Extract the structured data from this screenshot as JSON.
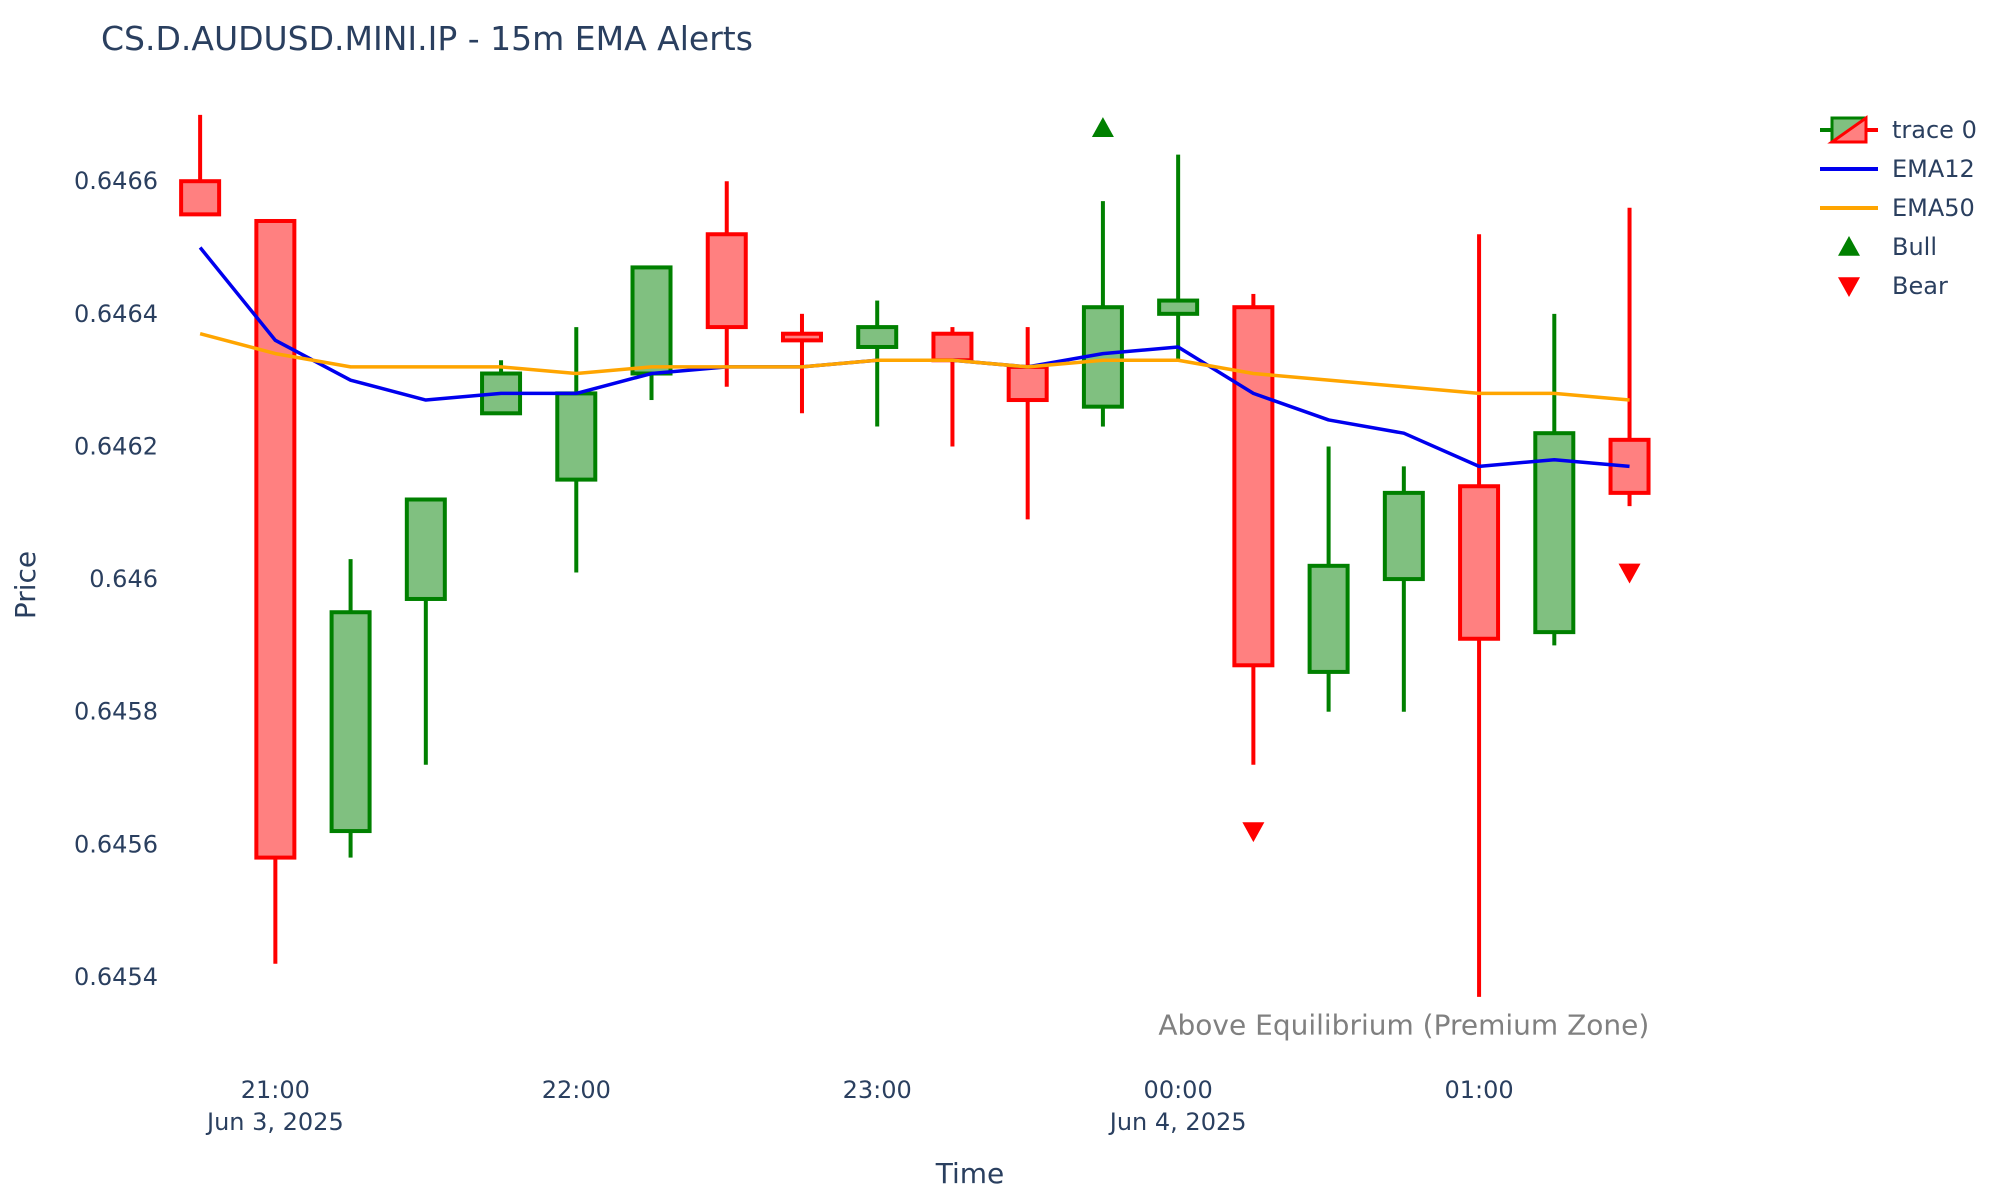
{
  "chart_data": {
    "type": "candlestick",
    "title": "CS.D.AUDUSD.MINI.IP - 15m EMA Alerts",
    "xlabel": "Time",
    "ylabel": "Price",
    "ylim": [
      0.64532,
      0.64673
    ],
    "x_range": [
      "2025-06-03 20:37",
      "2025-06-04 02:00"
    ],
    "grid": false,
    "legend_position": "top-right",
    "y_ticks": [
      "0.6454",
      "0.6456",
      "0.6458",
      "0.646",
      "0.6462",
      "0.6464",
      "0.6466"
    ],
    "x_ticks": [
      {
        "time": "2025-06-03 21:00",
        "line1": "21:00",
        "line2": "Jun 3, 2025"
      },
      {
        "time": "2025-06-03 22:00",
        "line1": "22:00",
        "line2": ""
      },
      {
        "time": "2025-06-03 23:00",
        "line1": "23:00",
        "line2": ""
      },
      {
        "time": "2025-06-04 00:00",
        "line1": "00:00",
        "line2": "Jun 4, 2025"
      },
      {
        "time": "2025-06-04 01:00",
        "line1": "01:00",
        "line2": ""
      }
    ],
    "colors": {
      "up_line": "#008000",
      "up_fill": "#80c080",
      "down_line": "#ff0000",
      "down_fill": "#ff8080",
      "ema12": "#0000ee",
      "ema50": "#ffa500",
      "bull": "#008000",
      "bear": "#ff0000"
    },
    "candles": [
      {
        "time": "2025-06-03 20:45",
        "open": 0.6466,
        "high": 0.6467,
        "low": 0.64655,
        "close": 0.64655
      },
      {
        "time": "2025-06-03 21:00",
        "open": 0.64654,
        "high": 0.64654,
        "low": 0.64542,
        "close": 0.64558
      },
      {
        "time": "2025-06-03 21:15",
        "open": 0.64562,
        "high": 0.64603,
        "low": 0.64558,
        "close": 0.64595
      },
      {
        "time": "2025-06-03 21:30",
        "open": 0.64597,
        "high": 0.64612,
        "low": 0.64572,
        "close": 0.64612
      },
      {
        "time": "2025-06-03 21:45",
        "open": 0.64625,
        "high": 0.64633,
        "low": 0.64625,
        "close": 0.64631
      },
      {
        "time": "2025-06-03 22:00",
        "open": 0.64615,
        "high": 0.64638,
        "low": 0.64601,
        "close": 0.64628
      },
      {
        "time": "2025-06-03 22:15",
        "open": 0.64631,
        "high": 0.64647,
        "low": 0.64627,
        "close": 0.64647
      },
      {
        "time": "2025-06-03 22:30",
        "open": 0.64652,
        "high": 0.6466,
        "low": 0.64629,
        "close": 0.64638
      },
      {
        "time": "2025-06-03 22:45",
        "open": 0.64637,
        "high": 0.6464,
        "low": 0.64625,
        "close": 0.64636
      },
      {
        "time": "2025-06-03 23:00",
        "open": 0.64635,
        "high": 0.64642,
        "low": 0.64623,
        "close": 0.64638
      },
      {
        "time": "2025-06-03 23:15",
        "open": 0.64637,
        "high": 0.64638,
        "low": 0.6462,
        "close": 0.64633
      },
      {
        "time": "2025-06-03 23:30",
        "open": 0.64632,
        "high": 0.64638,
        "low": 0.64609,
        "close": 0.64627
      },
      {
        "time": "2025-06-03 23:45",
        "open": 0.64626,
        "high": 0.64657,
        "low": 0.64623,
        "close": 0.64641
      },
      {
        "time": "2025-06-04 00:00",
        "open": 0.6464,
        "high": 0.64664,
        "low": 0.64633,
        "close": 0.64642
      },
      {
        "time": "2025-06-04 00:15",
        "open": 0.64641,
        "high": 0.64643,
        "low": 0.64572,
        "close": 0.64587
      },
      {
        "time": "2025-06-04 00:30",
        "open": 0.64586,
        "high": 0.6462,
        "low": 0.6458,
        "close": 0.64602
      },
      {
        "time": "2025-06-04 00:45",
        "open": 0.646,
        "high": 0.64617,
        "low": 0.6458,
        "close": 0.64613
      },
      {
        "time": "2025-06-04 01:00",
        "open": 0.64614,
        "high": 0.64652,
        "low": 0.64537,
        "close": 0.64591
      },
      {
        "time": "2025-06-04 01:15",
        "open": 0.64592,
        "high": 0.6464,
        "low": 0.6459,
        "close": 0.64622
      },
      {
        "time": "2025-06-04 01:30",
        "open": 0.64621,
        "high": 0.64656,
        "low": 0.64611,
        "close": 0.64613
      }
    ],
    "series": [
      {
        "name": "trace 0",
        "type": "candlestick"
      },
      {
        "name": "EMA12",
        "type": "line",
        "values": [
          0.6465,
          0.64636,
          0.6463,
          0.64627,
          0.64628,
          0.64628,
          0.64631,
          0.64632,
          0.64632,
          0.64633,
          0.64633,
          0.64632,
          0.64634,
          0.64635,
          0.64628,
          0.64624,
          0.64622,
          0.64617,
          0.64618,
          0.64617
        ]
      },
      {
        "name": "EMA50",
        "type": "line",
        "values": [
          0.64637,
          0.64634,
          0.64632,
          0.64632,
          0.64632,
          0.64631,
          0.64632,
          0.64632,
          0.64632,
          0.64633,
          0.64633,
          0.64632,
          0.64633,
          0.64633,
          0.64631,
          0.6463,
          0.64629,
          0.64628,
          0.64628,
          0.64627
        ]
      },
      {
        "name": "Bull",
        "type": "scatter",
        "marker": "triangle-up",
        "points": [
          {
            "time": "2025-06-03 23:45",
            "price": 0.64668
          }
        ]
      },
      {
        "name": "Bear",
        "type": "scatter",
        "marker": "triangle-down",
        "points": [
          {
            "time": "2025-06-04 00:15",
            "price": 0.64562
          },
          {
            "time": "2025-06-04 01:30",
            "price": 0.64601
          }
        ]
      }
    ],
    "annotations": [
      {
        "text": "Above Equilibrium (Premium Zone)",
        "time": "2025-06-04 00:45",
        "price": 0.64534
      }
    ]
  }
}
